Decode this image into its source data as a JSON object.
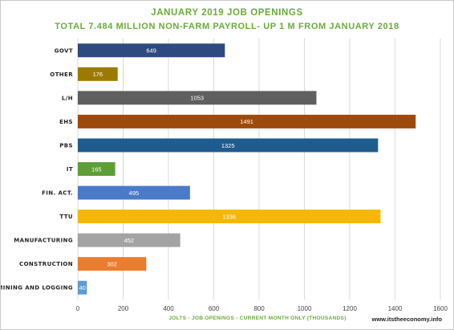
{
  "chart_data": {
    "type": "bar",
    "orientation": "horizontal",
    "title": "JANUARY 2019 JOB OPENINGS",
    "subtitle": "TOTAL 7.484 MILLION NON-FARM PAYROLL- UP 1 M FROM JANUARY 2018",
    "xlabel": "JOLTS - JOB OPENINGS - CURRENT MONTH ONLY (THOUSANDS)",
    "source": "www.itstheeconomy.info",
    "xlim": [
      0,
      1600
    ],
    "xticks": [
      0,
      200,
      400,
      600,
      800,
      1000,
      1200,
      1400,
      1600
    ],
    "grid": "vertical",
    "categories": [
      "GOVT",
      "OTHER",
      "L/H",
      "EHS",
      "PBS",
      "IT",
      "FIN. ACT.",
      "TTU",
      "MANUFACTURING",
      "CONSTRUCTION",
      "MINING AND LOGGING"
    ],
    "values": [
      649,
      176,
      1053,
      1491,
      1325,
      165,
      495,
      1336,
      452,
      302,
      40
    ],
    "colors": [
      "#2e4a7e",
      "#9c7a00",
      "#5f5f5f",
      "#9e4a0c",
      "#1f5c8e",
      "#5e9e38",
      "#4a7ac8",
      "#f5b800",
      "#a3a3a3",
      "#ea7d2e",
      "#5b9bd5"
    ]
  }
}
